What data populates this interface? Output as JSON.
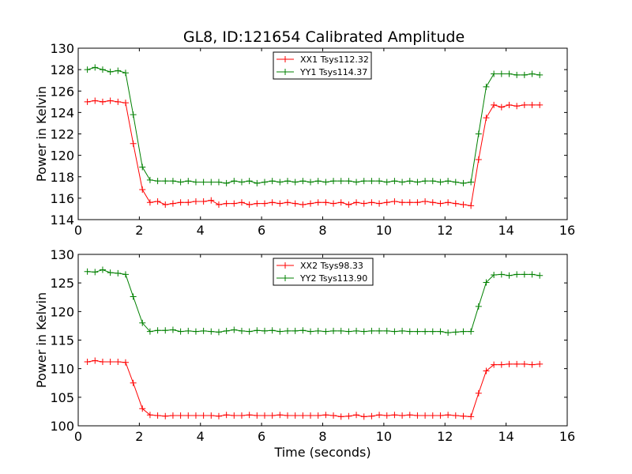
{
  "title": "GL8, ID:121654 Calibrated Amplitude",
  "chart_data": [
    {
      "type": "line",
      "xlabel": "",
      "ylabel": "Power in Kelvin",
      "xlim": [
        0,
        16
      ],
      "ylim": [
        114,
        130
      ],
      "xticks": [
        0,
        2,
        4,
        6,
        8,
        10,
        12,
        14,
        16
      ],
      "yticks": [
        114,
        116,
        118,
        120,
        122,
        124,
        126,
        128,
        130
      ],
      "grid": false,
      "legend_position": "top-center",
      "x": [
        0.3,
        0.55,
        0.8,
        1.05,
        1.3,
        1.55,
        1.8,
        2.1,
        2.35,
        2.6,
        2.85,
        3.1,
        3.35,
        3.6,
        3.85,
        4.1,
        4.35,
        4.6,
        4.85,
        5.1,
        5.35,
        5.6,
        5.85,
        6.1,
        6.35,
        6.6,
        6.85,
        7.1,
        7.35,
        7.6,
        7.85,
        8.1,
        8.35,
        8.6,
        8.85,
        9.1,
        9.35,
        9.6,
        9.85,
        10.1,
        10.35,
        10.6,
        10.85,
        11.1,
        11.35,
        11.6,
        11.85,
        12.1,
        12.35,
        12.6,
        12.85,
        13.1,
        13.35,
        13.6,
        13.85,
        14.1,
        14.35,
        14.6,
        14.85,
        15.1
      ],
      "series": [
        {
          "name": "XX1 Tsys112.32",
          "color": "#ff0000",
          "values": [
            125.0,
            125.1,
            125.0,
            125.1,
            125.0,
            124.9,
            121.1,
            116.8,
            115.6,
            115.7,
            115.4,
            115.5,
            115.6,
            115.6,
            115.7,
            115.7,
            115.8,
            115.4,
            115.5,
            115.5,
            115.6,
            115.4,
            115.5,
            115.5,
            115.6,
            115.5,
            115.6,
            115.5,
            115.4,
            115.5,
            115.6,
            115.6,
            115.5,
            115.6,
            115.4,
            115.6,
            115.5,
            115.6,
            115.5,
            115.6,
            115.7,
            115.6,
            115.6,
            115.6,
            115.7,
            115.6,
            115.5,
            115.6,
            115.5,
            115.4,
            115.3,
            119.6,
            123.5,
            124.7,
            124.5,
            124.7,
            124.6,
            124.7,
            124.7,
            124.7
          ]
        },
        {
          "name": "YY1 Tsys114.37",
          "color": "#008000",
          "values": [
            128.0,
            128.2,
            128.0,
            127.8,
            127.9,
            127.7,
            123.8,
            118.9,
            117.7,
            117.6,
            117.6,
            117.6,
            117.5,
            117.6,
            117.5,
            117.5,
            117.5,
            117.5,
            117.4,
            117.6,
            117.5,
            117.6,
            117.4,
            117.5,
            117.6,
            117.5,
            117.6,
            117.5,
            117.6,
            117.5,
            117.6,
            117.5,
            117.6,
            117.6,
            117.6,
            117.5,
            117.6,
            117.6,
            117.6,
            117.5,
            117.6,
            117.5,
            117.6,
            117.5,
            117.6,
            117.6,
            117.5,
            117.6,
            117.5,
            117.4,
            117.5,
            122.0,
            126.4,
            127.6,
            127.6,
            127.6,
            127.5,
            127.5,
            127.6,
            127.5
          ]
        }
      ]
    },
    {
      "type": "line",
      "xlabel": "Time (seconds)",
      "ylabel": "Power in Kelvin",
      "xlim": [
        0,
        16
      ],
      "ylim": [
        100,
        130
      ],
      "xticks": [
        0,
        2,
        4,
        6,
        8,
        10,
        12,
        14,
        16
      ],
      "yticks": [
        100,
        105,
        110,
        115,
        120,
        125,
        130
      ],
      "grid": false,
      "legend_position": "top-center",
      "x": [
        0.3,
        0.55,
        0.8,
        1.05,
        1.3,
        1.55,
        1.8,
        2.1,
        2.35,
        2.6,
        2.85,
        3.1,
        3.35,
        3.6,
        3.85,
        4.1,
        4.35,
        4.6,
        4.85,
        5.1,
        5.35,
        5.6,
        5.85,
        6.1,
        6.35,
        6.6,
        6.85,
        7.1,
        7.35,
        7.6,
        7.85,
        8.1,
        8.35,
        8.6,
        8.85,
        9.1,
        9.35,
        9.6,
        9.85,
        10.1,
        10.35,
        10.6,
        10.85,
        11.1,
        11.35,
        11.6,
        11.85,
        12.1,
        12.35,
        12.6,
        12.85,
        13.1,
        13.35,
        13.6,
        13.85,
        14.1,
        14.35,
        14.6,
        14.85,
        15.1
      ],
      "series": [
        {
          "name": "XX2 Tsys98.33",
          "color": "#ff0000",
          "values": [
            111.2,
            111.4,
            111.2,
            111.2,
            111.2,
            111.1,
            107.5,
            103.0,
            101.9,
            101.8,
            101.7,
            101.8,
            101.8,
            101.8,
            101.8,
            101.8,
            101.8,
            101.7,
            101.9,
            101.8,
            101.8,
            101.9,
            101.8,
            101.8,
            101.8,
            101.9,
            101.8,
            101.8,
            101.8,
            101.8,
            101.8,
            101.9,
            101.8,
            101.6,
            101.7,
            101.9,
            101.6,
            101.7,
            101.9,
            101.8,
            101.9,
            101.8,
            101.9,
            101.8,
            101.8,
            101.8,
            101.8,
            101.9,
            101.8,
            101.7,
            101.6,
            105.7,
            109.6,
            110.7,
            110.7,
            110.8,
            110.8,
            110.8,
            110.7,
            110.8
          ]
        },
        {
          "name": "YY2 Tsys113.90",
          "color": "#008000",
          "values": [
            127.0,
            126.9,
            127.3,
            126.8,
            126.7,
            126.5,
            122.6,
            118.0,
            116.5,
            116.7,
            116.7,
            116.8,
            116.5,
            116.6,
            116.5,
            116.6,
            116.5,
            116.4,
            116.6,
            116.8,
            116.6,
            116.5,
            116.7,
            116.6,
            116.7,
            116.5,
            116.6,
            116.6,
            116.7,
            116.5,
            116.6,
            116.5,
            116.6,
            116.6,
            116.5,
            116.6,
            116.5,
            116.6,
            116.6,
            116.6,
            116.5,
            116.6,
            116.5,
            116.5,
            116.5,
            116.5,
            116.5,
            116.3,
            116.4,
            116.5,
            116.5,
            120.9,
            125.1,
            126.4,
            126.5,
            126.3,
            126.5,
            126.5,
            126.5,
            126.3
          ]
        }
      ]
    }
  ]
}
